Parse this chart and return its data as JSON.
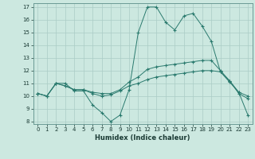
{
  "xlabel": "Humidex (Indice chaleur)",
  "xlim": [
    -0.5,
    23.5
  ],
  "ylim": [
    7.8,
    17.3
  ],
  "yticks": [
    8,
    9,
    10,
    11,
    12,
    13,
    14,
    15,
    16,
    17
  ],
  "xticks": [
    0,
    1,
    2,
    3,
    4,
    5,
    6,
    7,
    8,
    9,
    10,
    11,
    12,
    13,
    14,
    15,
    16,
    17,
    18,
    19,
    20,
    21,
    22,
    23
  ],
  "bg_color": "#cce8e0",
  "line_color": "#2a7a6e",
  "grid_color": "#aaccc6",
  "series1": {
    "x": [
      0,
      1,
      2,
      3,
      4,
      5,
      6,
      7,
      8,
      9,
      10,
      11,
      12,
      13,
      14,
      15,
      16,
      17,
      18,
      19,
      20,
      21,
      22,
      23
    ],
    "y": [
      10.2,
      10.0,
      11.0,
      11.0,
      10.4,
      10.4,
      9.3,
      8.7,
      8.0,
      8.5,
      10.5,
      15.0,
      17.0,
      17.0,
      15.8,
      15.2,
      16.3,
      16.5,
      15.5,
      14.3,
      11.9,
      11.1,
      10.3,
      8.5
    ]
  },
  "series2": {
    "x": [
      0,
      1,
      2,
      3,
      4,
      5,
      6,
      7,
      8,
      9,
      10,
      11,
      12,
      13,
      14,
      15,
      16,
      17,
      18,
      19,
      20,
      21,
      22,
      23
    ],
    "y": [
      10.2,
      10.0,
      11.0,
      10.8,
      10.5,
      10.5,
      10.3,
      10.2,
      10.2,
      10.5,
      11.1,
      11.5,
      12.1,
      12.3,
      12.4,
      12.5,
      12.6,
      12.7,
      12.8,
      12.8,
      12.0,
      11.2,
      10.3,
      10.0
    ]
  },
  "series3": {
    "x": [
      0,
      1,
      2,
      3,
      4,
      5,
      6,
      7,
      8,
      9,
      10,
      11,
      12,
      13,
      14,
      15,
      16,
      17,
      18,
      19,
      20,
      21,
      22,
      23
    ],
    "y": [
      10.2,
      10.0,
      11.0,
      10.8,
      10.5,
      10.5,
      10.2,
      10.0,
      10.1,
      10.4,
      10.8,
      11.0,
      11.3,
      11.5,
      11.6,
      11.7,
      11.8,
      11.9,
      12.0,
      12.0,
      11.9,
      11.2,
      10.2,
      9.8
    ]
  }
}
